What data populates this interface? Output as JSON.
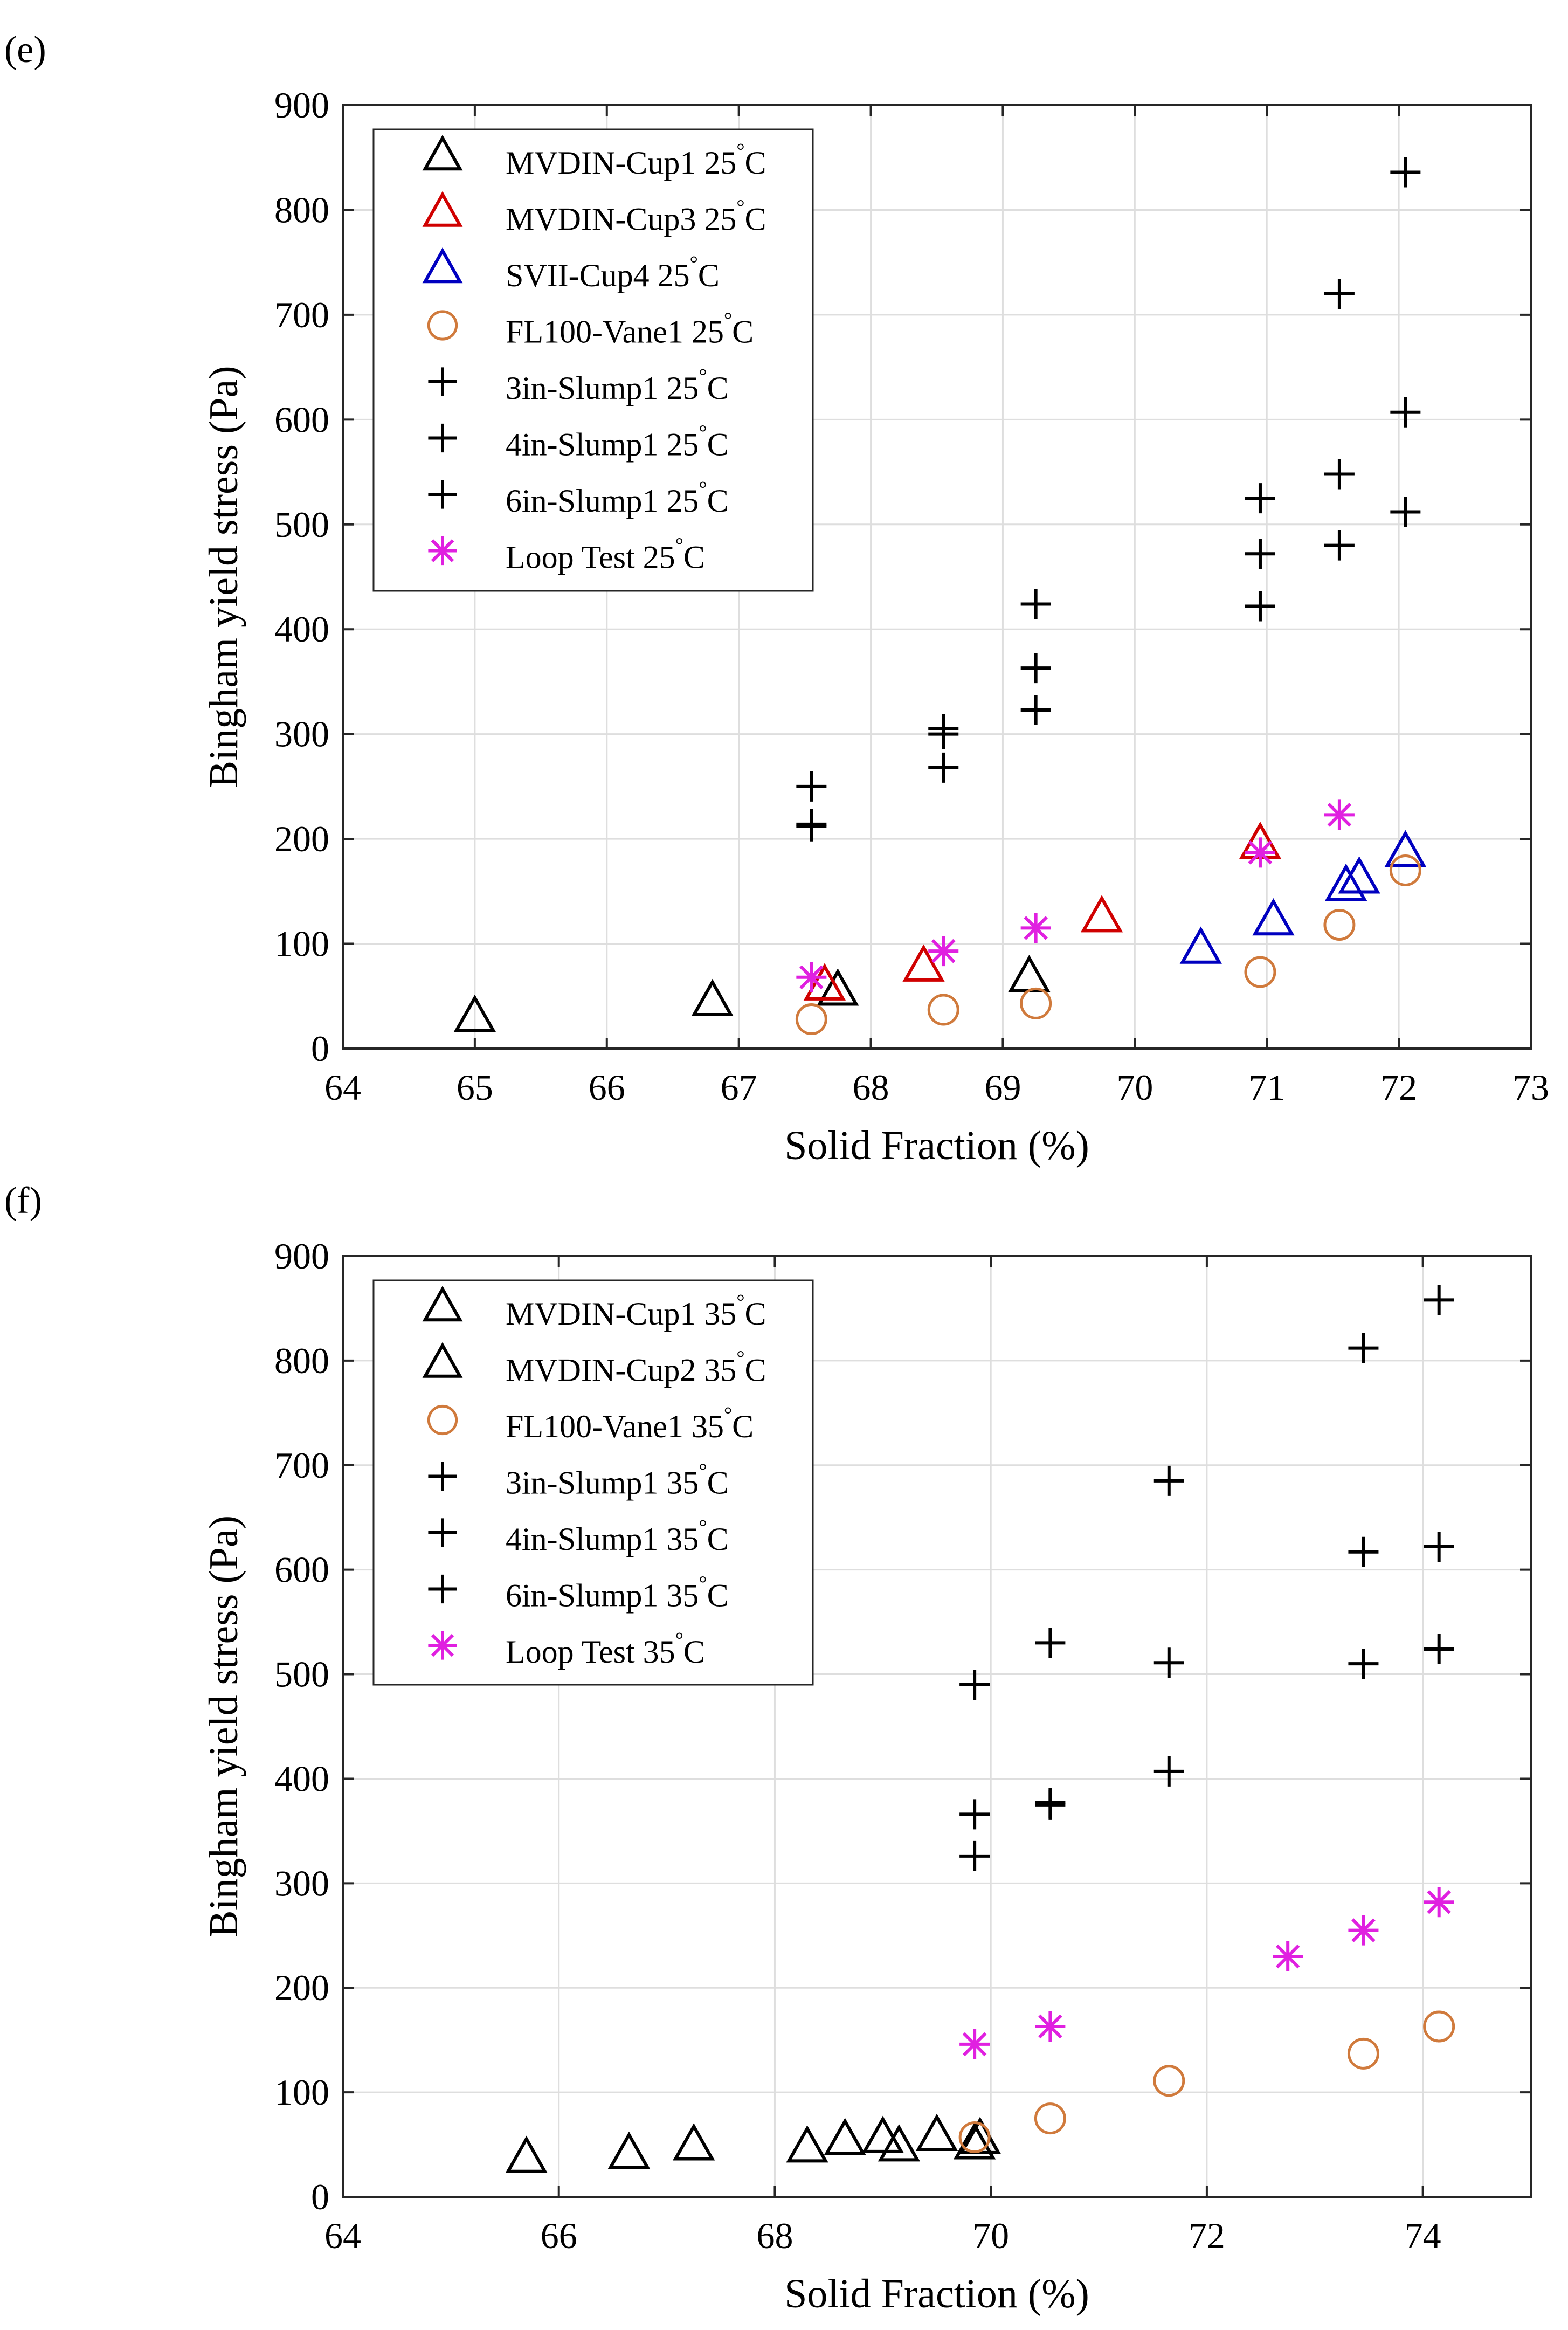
{
  "chart_data": [
    {
      "type": "scatter",
      "panel_label": "(e)",
      "xlabel": "Solid Fraction (%)",
      "ylabel": "Bingham yield stress (Pa)",
      "xlim": [
        64,
        73
      ],
      "ylim": [
        0,
        900
      ],
      "xticks": [
        64,
        65,
        66,
        67,
        68,
        69,
        70,
        71,
        72,
        73
      ],
      "yticks": [
        0,
        100,
        200,
        300,
        400,
        500,
        600,
        700,
        800,
        900
      ],
      "grid": true,
      "legend_position": "top-left",
      "series": [
        {
          "name": "MVDIN-Cup1 25°C",
          "label": "MVDIN-Cup1 25",
          "unit": "C",
          "marker": "triangle",
          "color": "#000000",
          "points": [
            [
              65.0,
              30
            ],
            [
              66.8,
              45
            ],
            [
              67.75,
              55
            ],
            [
              69.2,
              68
            ]
          ]
        },
        {
          "name": "MVDIN-Cup3 25°C",
          "label": "MVDIN-Cup3 25",
          "unit": "C",
          "marker": "triangle",
          "color": "#d00000",
          "points": [
            [
              67.65,
              60
            ],
            [
              68.4,
              78
            ],
            [
              69.75,
              125
            ],
            [
              70.95,
              195
            ]
          ]
        },
        {
          "name": "SVII-Cup4 25°C",
          "label": "SVII-Cup4 25",
          "unit": "C",
          "marker": "triangle",
          "color": "#0000c0",
          "points": [
            [
              70.5,
              95
            ],
            [
              71.05,
              122
            ],
            [
              71.6,
              155
            ],
            [
              71.7,
              162
            ],
            [
              72.05,
              187
            ]
          ]
        },
        {
          "name": "FL100-Vane1 25°C",
          "label": "FL100-Vane1 25",
          "unit": "C",
          "marker": "circle",
          "color": "#d07a3c",
          "points": [
            [
              67.55,
              28
            ],
            [
              68.55,
              37
            ],
            [
              69.25,
              43
            ],
            [
              70.95,
              73
            ],
            [
              71.55,
              118
            ],
            [
              72.05,
              170
            ]
          ]
        },
        {
          "name": "3in-Slump1 25°C",
          "label": "3in-Slump1 25",
          "unit": "C",
          "marker": "plus",
          "color": "#000000",
          "points": [
            [
              67.55,
              212
            ],
            [
              68.55,
              268
            ],
            [
              69.25,
              323
            ],
            [
              70.95,
              422
            ],
            [
              71.55,
              480
            ],
            [
              72.05,
              512
            ]
          ]
        },
        {
          "name": "4in-Slump1 25°C",
          "label": "4in-Slump1 25",
          "unit": "C",
          "marker": "plus",
          "color": "#000000",
          "points": [
            [
              67.55,
              214
            ],
            [
              68.55,
              300
            ],
            [
              69.25,
              363
            ],
            [
              70.95,
              472
            ],
            [
              71.55,
              548
            ],
            [
              72.05,
              607
            ]
          ]
        },
        {
          "name": "6in-Slump1 25°C",
          "label": "6in-Slump1 25",
          "unit": "C",
          "marker": "plus",
          "color": "#000000",
          "points": [
            [
              67.55,
              250
            ],
            [
              68.55,
              305
            ],
            [
              69.25,
              424
            ],
            [
              70.95,
              525
            ],
            [
              71.55,
              720
            ],
            [
              72.05,
              836
            ]
          ]
        },
        {
          "name": "Loop Test 25°C",
          "label": "Loop Test 25",
          "unit": "C",
          "marker": "asterisk",
          "color": "#e020e0",
          "points": [
            [
              67.55,
              68
            ],
            [
              68.55,
              93
            ],
            [
              69.25,
              115
            ],
            [
              70.95,
              187
            ],
            [
              71.55,
              223
            ]
          ]
        }
      ]
    },
    {
      "type": "scatter",
      "panel_label": "(f)",
      "xlabel": "Solid Fraction (%)",
      "ylabel": "Bingham yield stress (Pa)",
      "xlim": [
        64,
        75
      ],
      "ylim": [
        0,
        900
      ],
      "xticks": [
        64,
        66,
        68,
        70,
        72,
        74
      ],
      "yticks": [
        0,
        100,
        200,
        300,
        400,
        500,
        600,
        700,
        800,
        900
      ],
      "grid": true,
      "legend_position": "top-left",
      "series": [
        {
          "name": "MVDIN-Cup1 35°C",
          "label": "MVDIN-Cup1 35",
          "unit": "C",
          "marker": "triangle",
          "color": "#000000",
          "points": [
            [
              65.7,
              37
            ],
            [
              66.65,
              41
            ],
            [
              67.25,
              49
            ],
            [
              68.3,
              47
            ],
            [
              68.65,
              54
            ],
            [
              69.15,
              48
            ],
            [
              69.85,
              50
            ]
          ]
        },
        {
          "name": "MVDIN-Cup2 35°C",
          "label": "MVDIN-Cup2 35",
          "unit": "C",
          "marker": "triangle",
          "color": "#000000",
          "points": [
            [
              69.0,
              56
            ],
            [
              69.5,
              58
            ],
            [
              69.9,
              55
            ]
          ]
        },
        {
          "name": "FL100-Vane1 35°C",
          "label": "FL100-Vane1 35",
          "unit": "C",
          "marker": "circle",
          "color": "#d07a3c",
          "points": [
            [
              69.85,
              57
            ],
            [
              70.55,
              75
            ],
            [
              71.65,
              111
            ],
            [
              73.45,
              137
            ],
            [
              74.15,
              163
            ]
          ]
        },
        {
          "name": "3in-Slump1 35°C",
          "label": "3in-Slump1 35",
          "unit": "C",
          "marker": "plus",
          "color": "#000000",
          "points": [
            [
              69.85,
              326
            ],
            [
              70.55,
              375
            ],
            [
              71.65,
              407
            ],
            [
              73.45,
              510
            ],
            [
              74.15,
              524
            ]
          ]
        },
        {
          "name": "4in-Slump1 35°C",
          "label": "4in-Slump1 35",
          "unit": "C",
          "marker": "plus",
          "color": "#000000",
          "points": [
            [
              69.85,
              366
            ],
            [
              70.55,
              377
            ],
            [
              71.65,
              511
            ],
            [
              73.45,
              617
            ],
            [
              74.15,
              622
            ]
          ]
        },
        {
          "name": "6in-Slump1 35°C",
          "label": "6in-Slump1 35",
          "unit": "C",
          "marker": "plus",
          "color": "#000000",
          "points": [
            [
              69.85,
              490
            ],
            [
              70.55,
              530
            ],
            [
              71.65,
              685
            ],
            [
              73.45,
              812
            ],
            [
              74.15,
              858
            ]
          ]
        },
        {
          "name": "Loop Test 35°C",
          "label": "Loop Test 35",
          "unit": "C",
          "marker": "asterisk",
          "color": "#e020e0",
          "points": [
            [
              69.85,
              146
            ],
            [
              70.55,
              163
            ],
            [
              72.75,
              230
            ],
            [
              73.45,
              255
            ],
            [
              74.15,
              282
            ]
          ]
        }
      ]
    }
  ]
}
